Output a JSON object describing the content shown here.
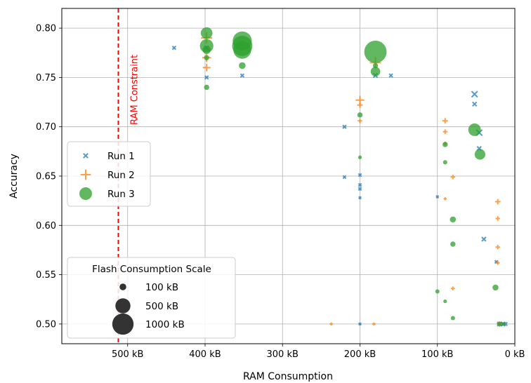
{
  "chart_data": {
    "type": "scatter",
    "xlabel": "RAM Consumption",
    "ylabel": "Accuracy",
    "x_unit": "kB",
    "x_inverted": true,
    "xlim": [
      585,
      0
    ],
    "ylim": [
      0.48,
      0.82
    ],
    "xticks": [
      500,
      400,
      300,
      200,
      100,
      0
    ],
    "xtick_labels": [
      "500 kB",
      "400 kB",
      "300 kB",
      "200 kB",
      "100 kB",
      "0 kB"
    ],
    "yticks": [
      0.5,
      0.55,
      0.6,
      0.65,
      0.7,
      0.75,
      0.8
    ],
    "ytick_labels": [
      "0.50",
      "0.55",
      "0.60",
      "0.65",
      "0.70",
      "0.75",
      "0.80"
    ],
    "grid": true,
    "constraint": {
      "x": 512,
      "label": "RAM Constraint",
      "color": "#ff0000"
    },
    "legend_series": {
      "placement": "center-left"
    },
    "legend_size": {
      "title": "Flash Consumption Scale",
      "placement": "bottom-left",
      "entries": [
        {
          "label": "100 kB",
          "flash": 100
        },
        {
          "label": "500 kB",
          "flash": 500
        },
        {
          "label": "1000 kB",
          "flash": 1000
        }
      ]
    },
    "series": [
      {
        "name": "Run 1",
        "marker": "x",
        "color": "#1f77b4",
        "points": [
          [
            440,
            0.78,
            40
          ],
          [
            398,
            0.78,
            60
          ],
          [
            398,
            0.75,
            40
          ],
          [
            352,
            0.752,
            40
          ],
          [
            180,
            0.752,
            60
          ],
          [
            160,
            0.752,
            40
          ],
          [
            220,
            0.7,
            40
          ],
          [
            220,
            0.649,
            30
          ],
          [
            200,
            0.651,
            30
          ],
          [
            200,
            0.641,
            30
          ],
          [
            200,
            0.637,
            30
          ],
          [
            200,
            0.628,
            20
          ],
          [
            100,
            0.629,
            20
          ],
          [
            52,
            0.733,
            120
          ],
          [
            52,
            0.723,
            60
          ],
          [
            46,
            0.694,
            120
          ],
          [
            46,
            0.678,
            60
          ],
          [
            40,
            0.586,
            60
          ],
          [
            24,
            0.563,
            30
          ],
          [
            20,
            0.5,
            60
          ],
          [
            15,
            0.5,
            60
          ],
          [
            12,
            0.5,
            40
          ],
          [
            200,
            0.5,
            20
          ]
        ]
      },
      {
        "name": "Run 2",
        "marker": "+",
        "color": "#ff7f0e",
        "points": [
          [
            398,
            0.79,
            250
          ],
          [
            398,
            0.77,
            150
          ],
          [
            398,
            0.76,
            120
          ],
          [
            200,
            0.727,
            150
          ],
          [
            200,
            0.722,
            60
          ],
          [
            200,
            0.706,
            40
          ],
          [
            180,
            0.765,
            250
          ],
          [
            90,
            0.706,
            60
          ],
          [
            90,
            0.695,
            40
          ],
          [
            90,
            0.683,
            30
          ],
          [
            80,
            0.649,
            40
          ],
          [
            90,
            0.627,
            20
          ],
          [
            22,
            0.624,
            60
          ],
          [
            22,
            0.607,
            40
          ],
          [
            22,
            0.578,
            40
          ],
          [
            22,
            0.562,
            30
          ],
          [
            80,
            0.536,
            30
          ],
          [
            20,
            0.5,
            60
          ],
          [
            237,
            0.5,
            20
          ],
          [
            182,
            0.5,
            20
          ]
        ]
      },
      {
        "name": "Run 3",
        "marker": "o",
        "color": "#2ca02c",
        "points": [
          [
            398,
            0.795,
            300
          ],
          [
            398,
            0.782,
            400
          ],
          [
            398,
            0.778,
            150
          ],
          [
            398,
            0.77,
            60
          ],
          [
            398,
            0.74,
            60
          ],
          [
            352,
            0.787,
            800
          ],
          [
            352,
            0.782,
            900
          ],
          [
            352,
            0.778,
            700
          ],
          [
            352,
            0.762,
            100
          ],
          [
            180,
            0.776,
            1100
          ],
          [
            180,
            0.756,
            200
          ],
          [
            180,
            0.762,
            60
          ],
          [
            200,
            0.712,
            60
          ],
          [
            200,
            0.669,
            30
          ],
          [
            90,
            0.682,
            60
          ],
          [
            90,
            0.664,
            40
          ],
          [
            80,
            0.606,
            80
          ],
          [
            80,
            0.581,
            60
          ],
          [
            52,
            0.697,
            350
          ],
          [
            45,
            0.672,
            250
          ],
          [
            25,
            0.537,
            80
          ],
          [
            100,
            0.533,
            40
          ],
          [
            90,
            0.523,
            30
          ],
          [
            80,
            0.506,
            40
          ],
          [
            20,
            0.5,
            40
          ],
          [
            15,
            0.5,
            30
          ]
        ]
      }
    ]
  }
}
